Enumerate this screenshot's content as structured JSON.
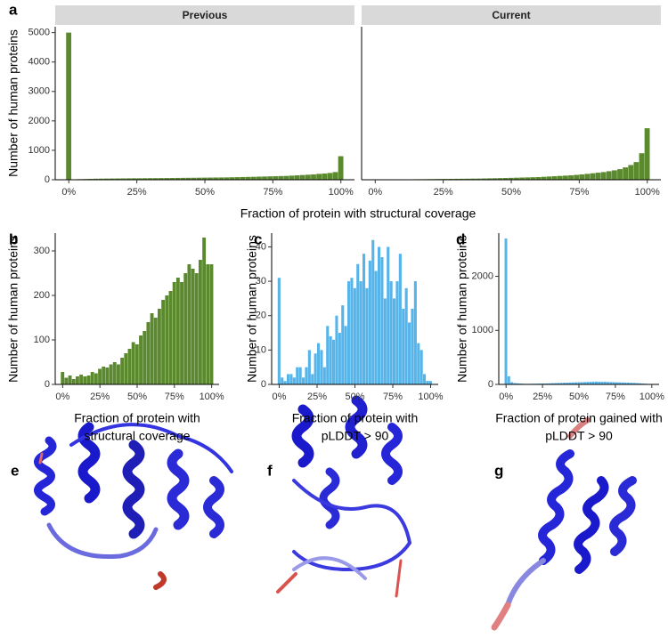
{
  "chart_data": [
    {
      "type": "histogram",
      "panel": "a",
      "facet": "Previous",
      "xlabel": [
        "Fraction of protein with structural coverage"
      ],
      "ylabel": "Number of human proteins",
      "color": "#5b8a2e",
      "bins": [
        -1,
        1,
        3,
        5,
        7,
        9,
        11,
        13,
        15,
        17,
        19,
        21,
        23,
        25,
        27,
        29,
        31,
        33,
        35,
        37,
        39,
        41,
        43,
        45,
        47,
        49,
        51,
        53,
        55,
        57,
        59,
        61,
        63,
        65,
        67,
        69,
        71,
        73,
        75,
        77,
        79,
        81,
        83,
        85,
        87,
        89,
        91,
        93,
        95,
        97,
        99,
        101
      ],
      "values": [
        5000,
        15,
        20,
        25,
        30,
        35,
        38,
        40,
        42,
        44,
        46,
        48,
        50,
        50,
        52,
        54,
        55,
        56,
        58,
        60,
        62,
        64,
        66,
        68,
        70,
        72,
        74,
        76,
        78,
        80,
        84,
        88,
        92,
        96,
        100,
        105,
        110,
        115,
        120,
        125,
        130,
        140,
        150,
        160,
        170,
        180,
        200,
        210,
        230,
        260,
        800
      ],
      "xlim": [
        -5,
        105
      ],
      "xticks": [
        {
          "value": 0,
          "label": "0%"
        },
        {
          "value": 25,
          "label": "25%"
        },
        {
          "value": 50,
          "label": "50%"
        },
        {
          "value": 75,
          "label": "75%"
        },
        {
          "value": 100,
          "label": "100%"
        }
      ],
      "ylim": [
        0,
        5200
      ],
      "yticks": [
        0,
        1000,
        2000,
        3000,
        4000,
        5000
      ]
    },
    {
      "type": "histogram",
      "facet": "Current",
      "color": "#5b8a2e",
      "bins": [
        -1,
        1,
        3,
        5,
        7,
        9,
        11,
        13,
        15,
        17,
        19,
        21,
        23,
        25,
        27,
        29,
        31,
        33,
        35,
        37,
        39,
        41,
        43,
        45,
        47,
        49,
        51,
        53,
        55,
        57,
        59,
        61,
        63,
        65,
        67,
        69,
        71,
        73,
        75,
        77,
        79,
        81,
        83,
        85,
        87,
        89,
        91,
        93,
        95,
        97,
        99,
        101
      ],
      "values": [
        10,
        5,
        6,
        8,
        10,
        12,
        14,
        16,
        18,
        20,
        22,
        24,
        26,
        28,
        30,
        32,
        34,
        36,
        38,
        40,
        44,
        48,
        52,
        56,
        60,
        65,
        70,
        75,
        80,
        85,
        90,
        100,
        110,
        120,
        130,
        140,
        150,
        165,
        180,
        200,
        220,
        240,
        260,
        290,
        320,
        360,
        420,
        500,
        600,
        900,
        1750
      ],
      "xlim": [
        -5,
        105
      ],
      "xticks": [
        {
          "value": 0,
          "label": "0%"
        },
        {
          "value": 25,
          "label": "25%"
        },
        {
          "value": 50,
          "label": "50%"
        },
        {
          "value": 75,
          "label": "75%"
        },
        {
          "value": 100,
          "label": "100%"
        }
      ],
      "ylim": [
        0,
        5200
      ]
    },
    {
      "type": "histogram",
      "panel": "b",
      "xlabel": [
        "Fraction of protein with",
        "structural coverage"
      ],
      "ylabel": "Number of human proteins",
      "color": "#5b8a2e",
      "bins": [
        -1.25,
        1.25,
        3.75,
        6.25,
        8.75,
        11.25,
        13.75,
        16.25,
        18.75,
        21.25,
        23.75,
        26.25,
        28.75,
        31.25,
        33.75,
        36.25,
        38.75,
        41.25,
        43.75,
        46.25,
        48.75,
        51.25,
        53.75,
        56.25,
        58.75,
        61.25,
        63.75,
        66.25,
        68.75,
        71.25,
        73.75,
        76.25,
        78.75,
        81.25,
        83.75,
        86.25,
        88.75,
        91.25,
        93.75,
        96.25,
        98.75,
        101.25
      ],
      "values": [
        28,
        15,
        20,
        12,
        18,
        22,
        18,
        20,
        28,
        25,
        35,
        40,
        38,
        45,
        50,
        45,
        60,
        70,
        80,
        95,
        90,
        110,
        120,
        140,
        160,
        150,
        170,
        190,
        200,
        210,
        230,
        240,
        230,
        250,
        270,
        260,
        250,
        280,
        330,
        270,
        270
      ],
      "xlim": [
        -5,
        105
      ],
      "xticks": [
        {
          "value": 0,
          "label": "0%"
        },
        {
          "value": 25,
          "label": "25%"
        },
        {
          "value": 50,
          "label": "50%"
        },
        {
          "value": 75,
          "label": "75%"
        },
        {
          "value": 100,
          "label": "100%"
        }
      ],
      "ylim": [
        0,
        340
      ],
      "yticks": [
        0,
        100,
        200,
        300
      ]
    },
    {
      "type": "histogram",
      "panel": "c",
      "xlabel": [
        "Fraction of protein with",
        "pLDDT > 90"
      ],
      "ylabel": "Number of human proteins",
      "color": "#56b4e9",
      "bins": [
        -1,
        1,
        3,
        5,
        7,
        9,
        11,
        13,
        15,
        17,
        19,
        21,
        23,
        25,
        27,
        29,
        31,
        33,
        35,
        37,
        39,
        41,
        43,
        45,
        47,
        49,
        51,
        53,
        55,
        57,
        59,
        61,
        63,
        65,
        67,
        69,
        71,
        73,
        75,
        77,
        79,
        81,
        83,
        85,
        87,
        89,
        91,
        93,
        95,
        97,
        99,
        101
      ],
      "values": [
        31,
        2,
        1,
        3,
        3,
        2,
        5,
        5,
        2,
        5,
        10,
        3,
        9,
        12,
        10,
        5,
        17,
        14,
        13,
        20,
        15,
        23,
        17,
        30,
        31,
        28,
        35,
        30,
        38,
        28,
        36,
        42,
        33,
        40,
        37,
        25,
        40,
        30,
        25,
        30,
        38,
        22,
        28,
        18,
        22,
        30,
        12,
        10,
        3,
        1,
        1
      ],
      "xlim": [
        -5,
        105
      ],
      "xticks": [
        {
          "value": 0,
          "label": "0%"
        },
        {
          "value": 25,
          "label": "25%"
        },
        {
          "value": 50,
          "label": "50%"
        },
        {
          "value": 75,
          "label": "75%"
        },
        {
          "value": 100,
          "label": "100%"
        }
      ],
      "ylim": [
        0,
        44
      ],
      "yticks": [
        0,
        10,
        20,
        30,
        40
      ]
    },
    {
      "type": "histogram",
      "panel": "d",
      "xlabel": [
        "Fraction of protein gained with",
        "pLDDT > 90"
      ],
      "ylabel": "Number of human proteins",
      "color": "#56b4e9",
      "bins": [
        -1,
        1,
        3,
        5,
        7,
        9,
        11,
        13,
        15,
        17,
        19,
        21,
        23,
        25,
        27,
        29,
        31,
        33,
        35,
        37,
        39,
        41,
        43,
        45,
        47,
        49,
        51,
        53,
        55,
        57,
        59,
        61,
        63,
        65,
        67,
        69,
        71,
        73,
        75,
        77,
        79,
        81,
        83,
        85,
        87,
        89,
        91,
        93,
        95,
        97,
        99,
        101
      ],
      "values": [
        2700,
        150,
        40,
        25,
        20,
        15,
        12,
        10,
        10,
        12,
        12,
        14,
        15,
        16,
        18,
        20,
        22,
        24,
        26,
        28,
        30,
        32,
        34,
        36,
        38,
        40,
        42,
        44,
        46,
        48,
        50,
        52,
        50,
        48,
        50,
        46,
        44,
        42,
        40,
        38,
        36,
        34,
        32,
        30,
        28,
        24,
        20,
        16,
        12,
        8,
        5
      ],
      "xlim": [
        -5,
        105
      ],
      "xticks": [
        {
          "value": 0,
          "label": "0%"
        },
        {
          "value": 25,
          "label": "25%"
        },
        {
          "value": 50,
          "label": "50%"
        },
        {
          "value": 75,
          "label": "75%"
        },
        {
          "value": 100,
          "label": "100%"
        }
      ],
      "ylim": [
        0,
        2800
      ],
      "yticks": [
        0,
        1000,
        2000
      ]
    }
  ],
  "images": [
    {
      "panel": "e"
    },
    {
      "panel": "f"
    },
    {
      "panel": "g"
    }
  ]
}
